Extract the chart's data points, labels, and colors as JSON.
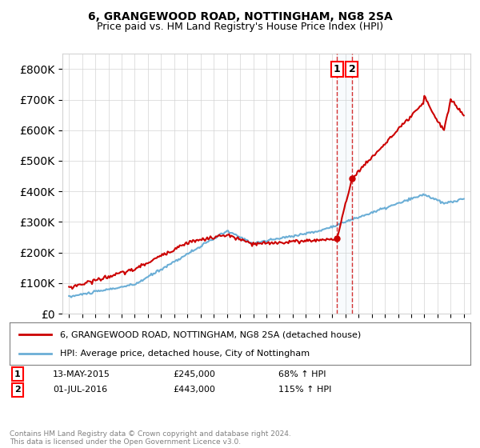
{
  "title": "6, GRANGEWOOD ROAD, NOTTINGHAM, NG8 2SA",
  "subtitle": "Price paid vs. HM Land Registry's House Price Index (HPI)",
  "legend_line1": "6, GRANGEWOOD ROAD, NOTTINGHAM, NG8 2SA (detached house)",
  "legend_line2": "HPI: Average price, detached house, City of Nottingham",
  "annotation1_label": "1",
  "annotation1_date": "13-MAY-2015",
  "annotation1_price": "£245,000",
  "annotation1_hpi": "68% ↑ HPI",
  "annotation2_label": "2",
  "annotation2_date": "01-JUL-2016",
  "annotation2_price": "£443,000",
  "annotation2_hpi": "115% ↑ HPI",
  "footer": "Contains HM Land Registry data © Crown copyright and database right 2024.\nThis data is licensed under the Open Government Licence v3.0.",
  "hpi_color": "#6baed6",
  "price_color": "#cc0000",
  "marker1_x": 2015.37,
  "marker1_y": 245000,
  "marker2_x": 2016.5,
  "marker2_y": 443000,
  "ylim": [
    0,
    850000
  ],
  "yticks": [
    0,
    100000,
    200000,
    300000,
    400000,
    500000,
    600000,
    700000,
    800000
  ],
  "xlim_left": 1994.5,
  "xlim_right": 2025.5
}
